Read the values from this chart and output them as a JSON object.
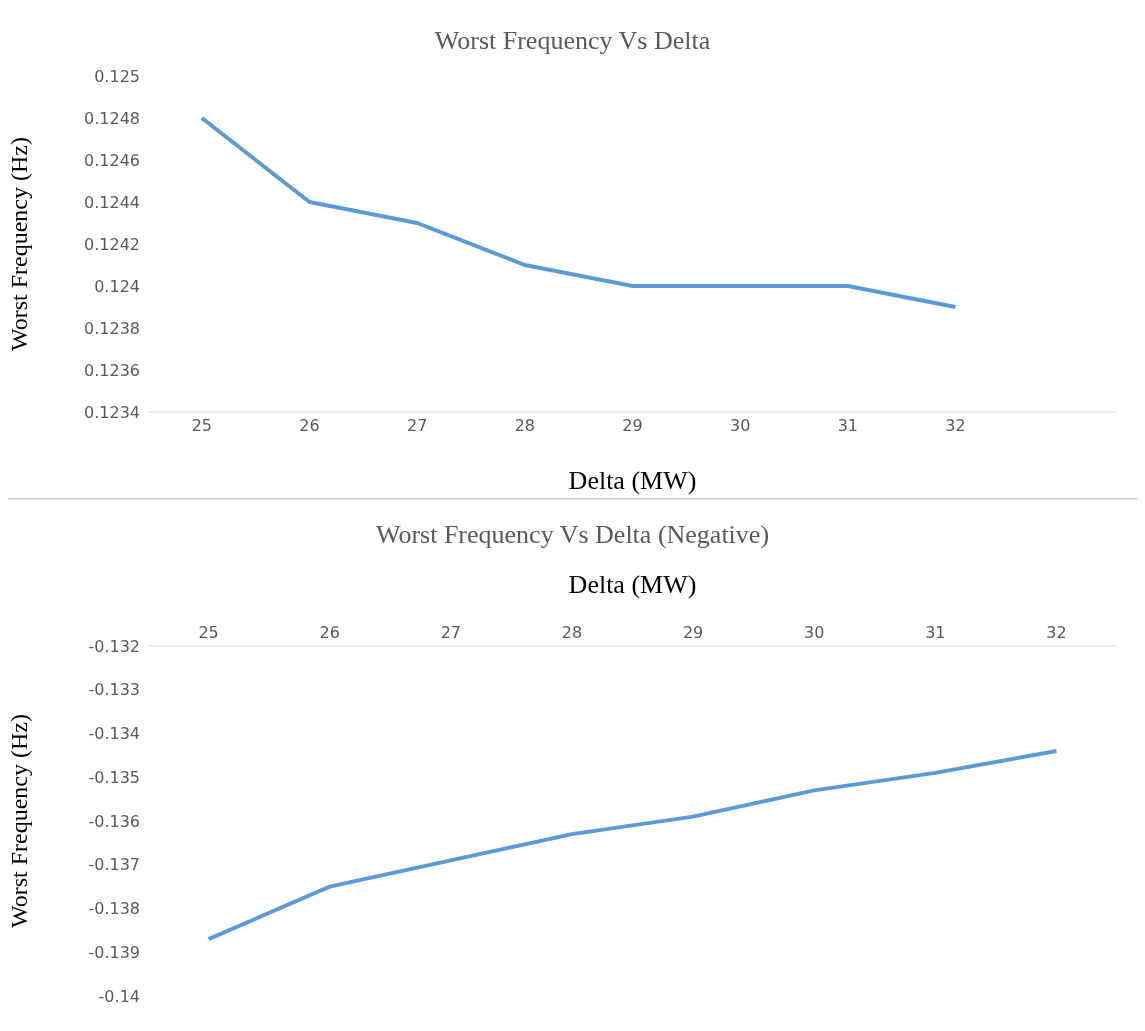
{
  "chart_data": [
    {
      "type": "line",
      "title": "Worst Frequency Vs Delta",
      "xlabel": "Delta (MW)",
      "ylabel": "Worst Frequency (Hz)",
      "categories": [
        "25",
        "26",
        "27",
        "28",
        "29",
        "30",
        "31",
        "32",
        null
      ],
      "color": "#5b9bd5",
      "values": [
        0.1248,
        0.1244,
        0.1243,
        0.1241,
        0.124,
        0.124,
        0.124,
        0.1239,
        null
      ],
      "ylim": [
        0.1234,
        0.125
      ],
      "yticks": [
        0.1234,
        0.1236,
        0.1238,
        0.124,
        0.1242,
        0.1244,
        0.1246,
        0.1248,
        0.125
      ]
    },
    {
      "type": "line",
      "title": "Worst Frequency Vs Delta (Negative)",
      "xlabel": "Delta (MW)",
      "ylabel": "Worst Frequency (Hz)",
      "categories": [
        "25",
        "26",
        "27",
        "28",
        "29",
        "30",
        "31",
        "32"
      ],
      "color": "#5b9bd5",
      "values": [
        -0.1387,
        -0.1375,
        -0.1369,
        -0.1363,
        -0.1359,
        -0.1353,
        -0.1349,
        -0.1344
      ],
      "ylim": [
        -0.14,
        -0.132
      ],
      "yticks": [
        -0.14,
        -0.139,
        -0.138,
        -0.137,
        -0.136,
        -0.135,
        -0.134,
        -0.133,
        -0.132
      ]
    }
  ]
}
